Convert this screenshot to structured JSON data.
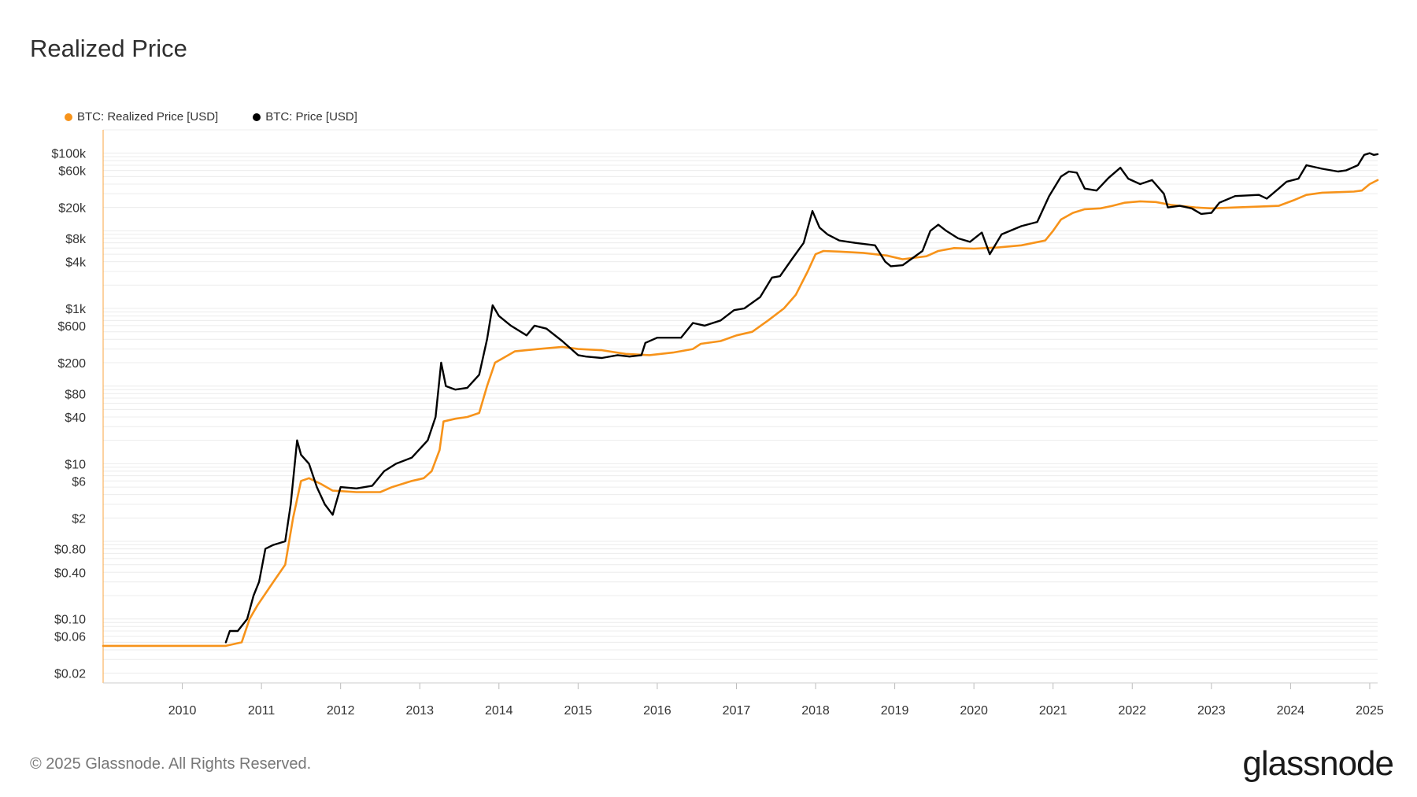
{
  "title": "Realized Price",
  "footer": "© 2025 Glassnode. All Rights Reserved.",
  "logo": "glassnode",
  "colors": {
    "realized": "#f7931a",
    "price": "#000000",
    "grid": "#ececec",
    "axis": "#f7931a"
  },
  "chart_data": {
    "type": "line",
    "title": "Realized Price",
    "yscale": "log",
    "ylim": [
      0.015,
      200000
    ],
    "xlim": [
      2009.0,
      2025.1
    ],
    "y_ticks": [
      {
        "value": 100000,
        "label": "$100k"
      },
      {
        "value": 60000,
        "label": "$60k"
      },
      {
        "value": 20000,
        "label": "$20k"
      },
      {
        "value": 8000,
        "label": "$8k"
      },
      {
        "value": 4000,
        "label": "$4k"
      },
      {
        "value": 1000,
        "label": "$1k"
      },
      {
        "value": 600,
        "label": "$600"
      },
      {
        "value": 200,
        "label": "$200"
      },
      {
        "value": 80,
        "label": "$80"
      },
      {
        "value": 40,
        "label": "$40"
      },
      {
        "value": 10,
        "label": "$10"
      },
      {
        "value": 6,
        "label": "$6"
      },
      {
        "value": 2,
        "label": "$2"
      },
      {
        "value": 0.8,
        "label": "$0.80"
      },
      {
        "value": 0.4,
        "label": "$0.40"
      },
      {
        "value": 0.1,
        "label": "$0.10"
      },
      {
        "value": 0.06,
        "label": "$0.06"
      },
      {
        "value": 0.02,
        "label": "$0.02"
      }
    ],
    "x_ticks": [
      {
        "value": 2010,
        "label": "2010"
      },
      {
        "value": 2011,
        "label": "2011"
      },
      {
        "value": 2012,
        "label": "2012"
      },
      {
        "value": 2013,
        "label": "2013"
      },
      {
        "value": 2014,
        "label": "2014"
      },
      {
        "value": 2015,
        "label": "2015"
      },
      {
        "value": 2016,
        "label": "2016"
      },
      {
        "value": 2017,
        "label": "2017"
      },
      {
        "value": 2018,
        "label": "2018"
      },
      {
        "value": 2019,
        "label": "2019"
      },
      {
        "value": 2020,
        "label": "2020"
      },
      {
        "value": 2021,
        "label": "2021"
      },
      {
        "value": 2022,
        "label": "2022"
      },
      {
        "value": 2023,
        "label": "2023"
      },
      {
        "value": 2024,
        "label": "2024"
      },
      {
        "value": 2025,
        "label": "2025"
      }
    ],
    "series": [
      {
        "name": "BTC: Realized Price [USD]",
        "color": "#f7931a",
        "points": [
          [
            2009.0,
            0.045
          ],
          [
            2010.55,
            0.045
          ],
          [
            2010.75,
            0.05
          ],
          [
            2010.85,
            0.1
          ],
          [
            2010.95,
            0.15
          ],
          [
            2011.15,
            0.3
          ],
          [
            2011.3,
            0.5
          ],
          [
            2011.4,
            2
          ],
          [
            2011.5,
            6
          ],
          [
            2011.6,
            6.5
          ],
          [
            2011.75,
            5.5
          ],
          [
            2011.9,
            4.5
          ],
          [
            2012.2,
            4.3
          ],
          [
            2012.5,
            4.3
          ],
          [
            2012.65,
            5
          ],
          [
            2012.9,
            6
          ],
          [
            2013.05,
            6.5
          ],
          [
            2013.15,
            8
          ],
          [
            2013.25,
            15
          ],
          [
            2013.3,
            35
          ],
          [
            2013.45,
            38
          ],
          [
            2013.6,
            40
          ],
          [
            2013.75,
            45
          ],
          [
            2013.85,
            100
          ],
          [
            2013.95,
            200
          ],
          [
            2014.2,
            280
          ],
          [
            2014.5,
            300
          ],
          [
            2014.8,
            320
          ],
          [
            2015.0,
            300
          ],
          [
            2015.3,
            290
          ],
          [
            2015.6,
            260
          ],
          [
            2015.9,
            250
          ],
          [
            2016.2,
            270
          ],
          [
            2016.45,
            300
          ],
          [
            2016.55,
            350
          ],
          [
            2016.8,
            380
          ],
          [
            2017.0,
            450
          ],
          [
            2017.2,
            500
          ],
          [
            2017.4,
            700
          ],
          [
            2017.6,
            1000
          ],
          [
            2017.75,
            1500
          ],
          [
            2017.9,
            3000
          ],
          [
            2018.0,
            5000
          ],
          [
            2018.1,
            5500
          ],
          [
            2018.3,
            5400
          ],
          [
            2018.6,
            5200
          ],
          [
            2018.9,
            4800
          ],
          [
            2019.1,
            4300
          ],
          [
            2019.4,
            4700
          ],
          [
            2019.55,
            5500
          ],
          [
            2019.75,
            6000
          ],
          [
            2020.0,
            5900
          ],
          [
            2020.3,
            6100
          ],
          [
            2020.6,
            6500
          ],
          [
            2020.9,
            7500
          ],
          [
            2021.0,
            10000
          ],
          [
            2021.1,
            14000
          ],
          [
            2021.25,
            17000
          ],
          [
            2021.4,
            19000
          ],
          [
            2021.6,
            19500
          ],
          [
            2021.75,
            21000
          ],
          [
            2021.9,
            23000
          ],
          [
            2022.1,
            24000
          ],
          [
            2022.3,
            23500
          ],
          [
            2022.5,
            21500
          ],
          [
            2022.8,
            20000
          ],
          [
            2023.0,
            19500
          ],
          [
            2023.3,
            20000
          ],
          [
            2023.6,
            20500
          ],
          [
            2023.85,
            21000
          ],
          [
            2024.05,
            25000
          ],
          [
            2024.2,
            29000
          ],
          [
            2024.4,
            31000
          ],
          [
            2024.8,
            32000
          ],
          [
            2024.9,
            33000
          ],
          [
            2025.0,
            40000
          ],
          [
            2025.1,
            45000
          ]
        ]
      },
      {
        "name": "BTC: Price [USD]",
        "color": "#000000",
        "points": [
          [
            2010.55,
            0.05
          ],
          [
            2010.6,
            0.07
          ],
          [
            2010.7,
            0.07
          ],
          [
            2010.82,
            0.1
          ],
          [
            2010.9,
            0.2
          ],
          [
            2010.97,
            0.3
          ],
          [
            2011.05,
            0.8
          ],
          [
            2011.15,
            0.9
          ],
          [
            2011.3,
            1
          ],
          [
            2011.37,
            3
          ],
          [
            2011.45,
            20
          ],
          [
            2011.5,
            13
          ],
          [
            2011.6,
            10
          ],
          [
            2011.7,
            5
          ],
          [
            2011.8,
            3
          ],
          [
            2011.9,
            2.2
          ],
          [
            2012.0,
            5
          ],
          [
            2012.2,
            4.8
          ],
          [
            2012.4,
            5.2
          ],
          [
            2012.55,
            8
          ],
          [
            2012.7,
            10
          ],
          [
            2012.9,
            12
          ],
          [
            2013.1,
            20
          ],
          [
            2013.2,
            40
          ],
          [
            2013.27,
            200
          ],
          [
            2013.33,
            100
          ],
          [
            2013.45,
            90
          ],
          [
            2013.6,
            95
          ],
          [
            2013.75,
            140
          ],
          [
            2013.85,
            400
          ],
          [
            2013.92,
            1100
          ],
          [
            2014.0,
            800
          ],
          [
            2014.15,
            600
          ],
          [
            2014.35,
            450
          ],
          [
            2014.45,
            600
          ],
          [
            2014.6,
            550
          ],
          [
            2014.8,
            380
          ],
          [
            2015.0,
            250
          ],
          [
            2015.1,
            240
          ],
          [
            2015.3,
            230
          ],
          [
            2015.5,
            250
          ],
          [
            2015.65,
            240
          ],
          [
            2015.8,
            250
          ],
          [
            2015.85,
            360
          ],
          [
            2016.0,
            420
          ],
          [
            2016.3,
            420
          ],
          [
            2016.45,
            650
          ],
          [
            2016.6,
            600
          ],
          [
            2016.8,
            700
          ],
          [
            2016.97,
            950
          ],
          [
            2017.1,
            1000
          ],
          [
            2017.3,
            1400
          ],
          [
            2017.45,
            2500
          ],
          [
            2017.55,
            2600
          ],
          [
            2017.7,
            4300
          ],
          [
            2017.85,
            7000
          ],
          [
            2017.96,
            18000
          ],
          [
            2018.05,
            11000
          ],
          [
            2018.15,
            9000
          ],
          [
            2018.3,
            7500
          ],
          [
            2018.5,
            7000
          ],
          [
            2018.75,
            6500
          ],
          [
            2018.88,
            4000
          ],
          [
            2018.95,
            3500
          ],
          [
            2019.1,
            3600
          ],
          [
            2019.35,
            5500
          ],
          [
            2019.45,
            10000
          ],
          [
            2019.55,
            12000
          ],
          [
            2019.65,
            10000
          ],
          [
            2019.8,
            8000
          ],
          [
            2019.95,
            7200
          ],
          [
            2020.1,
            9500
          ],
          [
            2020.2,
            5000
          ],
          [
            2020.35,
            9000
          ],
          [
            2020.6,
            11500
          ],
          [
            2020.8,
            13000
          ],
          [
            2020.95,
            28000
          ],
          [
            2021.1,
            50000
          ],
          [
            2021.2,
            58000
          ],
          [
            2021.3,
            56000
          ],
          [
            2021.4,
            35000
          ],
          [
            2021.55,
            33000
          ],
          [
            2021.7,
            48000
          ],
          [
            2021.85,
            65000
          ],
          [
            2021.95,
            47000
          ],
          [
            2022.1,
            40000
          ],
          [
            2022.25,
            45000
          ],
          [
            2022.4,
            30000
          ],
          [
            2022.45,
            20000
          ],
          [
            2022.6,
            21000
          ],
          [
            2022.75,
            19500
          ],
          [
            2022.87,
            16500
          ],
          [
            2023.0,
            17000
          ],
          [
            2023.1,
            23000
          ],
          [
            2023.3,
            28000
          ],
          [
            2023.6,
            29000
          ],
          [
            2023.7,
            26000
          ],
          [
            2023.85,
            35000
          ],
          [
            2023.95,
            43000
          ],
          [
            2024.1,
            47000
          ],
          [
            2024.2,
            70000
          ],
          [
            2024.4,
            63000
          ],
          [
            2024.6,
            58000
          ],
          [
            2024.7,
            60000
          ],
          [
            2024.85,
            70000
          ],
          [
            2024.93,
            95000
          ],
          [
            2025.0,
            100000
          ],
          [
            2025.05,
            95000
          ],
          [
            2025.1,
            97000
          ]
        ]
      }
    ]
  }
}
